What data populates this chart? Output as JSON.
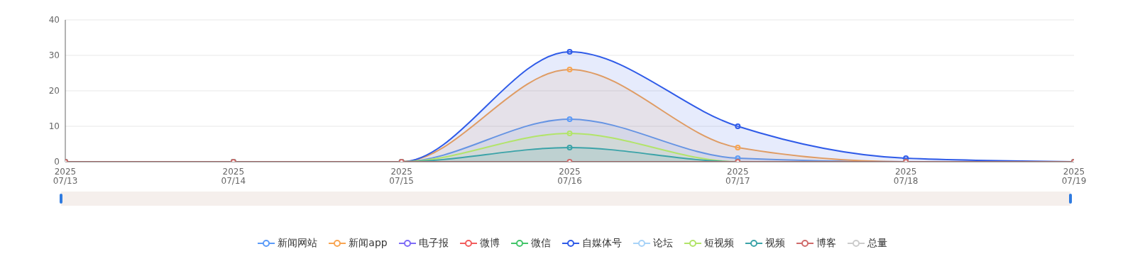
{
  "chart_data": {
    "type": "area",
    "categories": [
      "2025\n07/13",
      "2025\n07/14",
      "2025\n07/15",
      "2025\n07/16",
      "2025\n07/17",
      "2025\n07/18",
      "2025\n07/19"
    ],
    "series": [
      {
        "name": "新闻网站",
        "color": "#5b9bf8",
        "values": [
          0,
          0,
          0,
          12,
          1,
          0,
          0
        ]
      },
      {
        "name": "新闻app",
        "color": "#f8a552",
        "values": [
          0,
          0,
          0,
          26,
          4,
          0,
          0
        ]
      },
      {
        "name": "电子报",
        "color": "#7e6cf7",
        "type": "line",
        "values": [
          null,
          null,
          null,
          null,
          null,
          null,
          null
        ]
      },
      {
        "name": "微博",
        "color": "#f25d5d",
        "type": "line",
        "values": [
          null,
          null,
          null,
          null,
          null,
          null,
          null
        ]
      },
      {
        "name": "微信",
        "color": "#43c56a",
        "type": "line",
        "values": [
          null,
          null,
          null,
          null,
          null,
          null,
          null
        ]
      },
      {
        "name": "自媒体号",
        "color": "#2f5be8",
        "values": [
          0,
          0,
          0,
          31,
          10,
          1,
          0
        ]
      },
      {
        "name": "论坛",
        "color": "#a8d3f8",
        "type": "line",
        "values": [
          null,
          null,
          null,
          null,
          null,
          null,
          null
        ]
      },
      {
        "name": "短视频",
        "color": "#b2e46a",
        "values": [
          0,
          0,
          0,
          8,
          0,
          0,
          0
        ]
      },
      {
        "name": "视频",
        "color": "#3ba3a8",
        "values": [
          0,
          0,
          0,
          4,
          0,
          0,
          0
        ]
      },
      {
        "name": "博客",
        "color": "#d06b6b",
        "type": "line",
        "values": [
          0,
          0,
          0,
          0,
          0,
          0,
          0
        ]
      },
      {
        "name": "总量",
        "color": "#cccccc",
        "values": [
          null,
          null,
          null,
          null,
          null,
          null,
          null
        ]
      }
    ],
    "ylim": [
      0,
      40
    ],
    "yticks": [
      0,
      10,
      20,
      30,
      40
    ],
    "grid": "y",
    "legend": "bottom",
    "marker": "circle",
    "line_style": "solid"
  }
}
